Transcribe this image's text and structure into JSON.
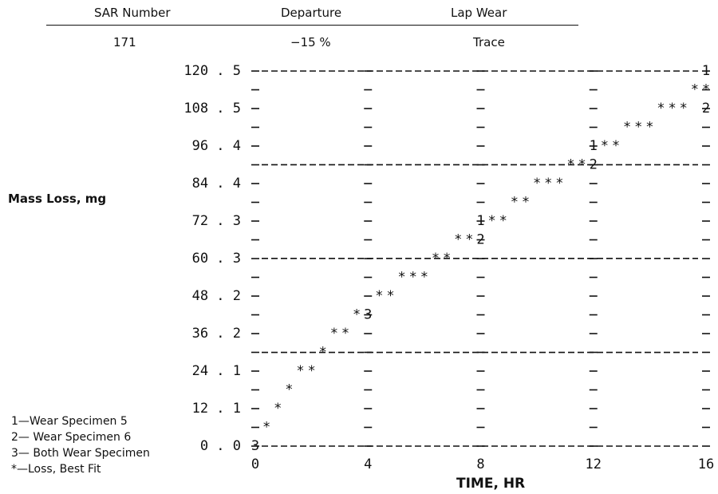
{
  "header": {
    "columns": [
      {
        "label": "SAR Number",
        "value": "171"
      },
      {
        "label": "Departure",
        "value": "−15 %"
      },
      {
        "label": "Lap Wear",
        "value": "Trace"
      }
    ]
  },
  "legend": [
    "1—Wear Specimen 5",
    "2— Wear Specimen 6",
    "3— Both Wear Specimen",
    "*—Loss, Best Fit"
  ],
  "chart_data": {
    "type": "scatter",
    "style": "ascii-printout",
    "xlabel": "TIME, HR",
    "ylabel": "Mass Loss, mg",
    "xlim": [
      0,
      16
    ],
    "ylim": [
      0,
      120.5
    ],
    "x_ticks": [
      "0",
      "4",
      "8",
      "12",
      "16"
    ],
    "y_ticks": [
      "120 . 5",
      "108 . 5",
      "96 . 4",
      "84 . 4",
      "72 . 3",
      "60 . 3",
      "48 . 2",
      "36 . 2",
      "24 . 1",
      "12 . 1",
      "0 . 0"
    ],
    "dashed_gridlines_y": [
      120.5,
      90.4,
      60.3,
      30.1,
      0.0
    ],
    "series": [
      {
        "name": "Wear Specimen 5",
        "symbol": "1",
        "points": [
          {
            "x": 8.0,
            "y": 72.3
          },
          {
            "x": 12.0,
            "y": 96.4
          },
          {
            "x": 16.0,
            "y": 120.5
          }
        ]
      },
      {
        "name": "Wear Specimen 6",
        "symbol": "2",
        "points": [
          {
            "x": 8.0,
            "y": 66.3
          },
          {
            "x": 12.0,
            "y": 90.4
          },
          {
            "x": 16.0,
            "y": 108.5
          }
        ]
      },
      {
        "name": "Both Wear Specimen",
        "symbol": "3",
        "points": [
          {
            "x": 0.0,
            "y": 0.0
          },
          {
            "x": 4.0,
            "y": 42.2
          }
        ]
      },
      {
        "name": "Loss, Best Fit",
        "symbol": "*",
        "points": [
          {
            "x": 0.4,
            "y": 6.0
          },
          {
            "x": 0.8,
            "y": 12.1
          },
          {
            "x": 1.2,
            "y": 18.1
          },
          {
            "x": 1.6,
            "y": 24.1
          },
          {
            "x": 2.0,
            "y": 24.1
          },
          {
            "x": 2.4,
            "y": 30.1
          },
          {
            "x": 2.8,
            "y": 36.2
          },
          {
            "x": 3.2,
            "y": 36.2
          },
          {
            "x": 3.6,
            "y": 42.2
          },
          {
            "x": 4.4,
            "y": 48.2
          },
          {
            "x": 4.8,
            "y": 48.2
          },
          {
            "x": 5.2,
            "y": 54.2
          },
          {
            "x": 5.6,
            "y": 54.2
          },
          {
            "x": 6.0,
            "y": 54.2
          },
          {
            "x": 6.4,
            "y": 60.3
          },
          {
            "x": 6.8,
            "y": 60.3
          },
          {
            "x": 7.2,
            "y": 66.3
          },
          {
            "x": 7.6,
            "y": 66.3
          },
          {
            "x": 8.4,
            "y": 72.3
          },
          {
            "x": 8.8,
            "y": 72.3
          },
          {
            "x": 9.2,
            "y": 78.3
          },
          {
            "x": 9.6,
            "y": 78.3
          },
          {
            "x": 10.0,
            "y": 84.4
          },
          {
            "x": 10.4,
            "y": 84.4
          },
          {
            "x": 10.8,
            "y": 84.4
          },
          {
            "x": 11.2,
            "y": 90.4
          },
          {
            "x": 11.6,
            "y": 90.4
          },
          {
            "x": 12.4,
            "y": 96.4
          },
          {
            "x": 12.8,
            "y": 96.4
          },
          {
            "x": 13.2,
            "y": 102.4
          },
          {
            "x": 13.6,
            "y": 102.4
          },
          {
            "x": 14.0,
            "y": 102.4
          },
          {
            "x": 14.4,
            "y": 108.5
          },
          {
            "x": 14.8,
            "y": 108.5
          },
          {
            "x": 15.2,
            "y": 108.5
          },
          {
            "x": 15.6,
            "y": 114.5
          },
          {
            "x": 16.0,
            "y": 114.5
          }
        ]
      }
    ]
  }
}
